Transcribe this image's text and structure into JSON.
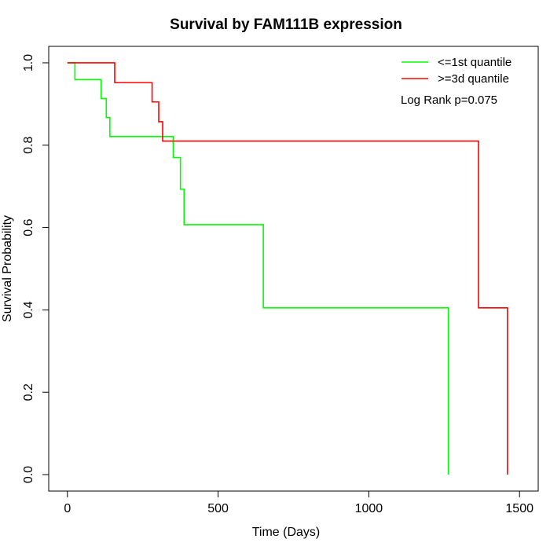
{
  "chart_data": {
    "type": "line",
    "title": "Survival by FAM111B expression",
    "xlabel": "Time (Days)",
    "ylabel": "Survival Probability",
    "xlim": [
      -62,
      1562
    ],
    "ylim": [
      -0.04,
      1.04
    ],
    "xticks": [
      0,
      500,
      1000,
      1500
    ],
    "yticks": [
      0.0,
      0.2,
      0.4,
      0.6,
      0.8,
      1.0
    ],
    "xtick_labels": [
      "0",
      "500",
      "1000",
      "1500"
    ],
    "ytick_labels": [
      "0.0",
      "0.2",
      "0.4",
      "0.6",
      "0.8",
      "1.0"
    ],
    "grid": false,
    "legend_position": "top-right",
    "annotation": "Log Rank p=0.075",
    "series": [
      {
        "name": "<=1st quantile",
        "color": "#00ff00",
        "steps": [
          [
            0,
            1.0
          ],
          [
            25,
            0.959
          ],
          [
            112,
            0.913
          ],
          [
            129,
            0.867
          ],
          [
            141,
            0.821
          ],
          [
            351,
            0.77
          ],
          [
            375,
            0.693
          ],
          [
            387,
            0.607
          ],
          [
            650,
            0.405
          ],
          [
            1264,
            0.0
          ]
        ]
      },
      {
        "name": ">=3d quantile",
        "color": "#ff0000",
        "steps": [
          [
            0,
            1.0
          ],
          [
            157,
            0.952
          ],
          [
            281,
            0.905
          ],
          [
            303,
            0.857
          ],
          [
            316,
            0.81
          ],
          [
            1364,
            0.405
          ],
          [
            1460,
            0.0
          ]
        ]
      }
    ]
  }
}
